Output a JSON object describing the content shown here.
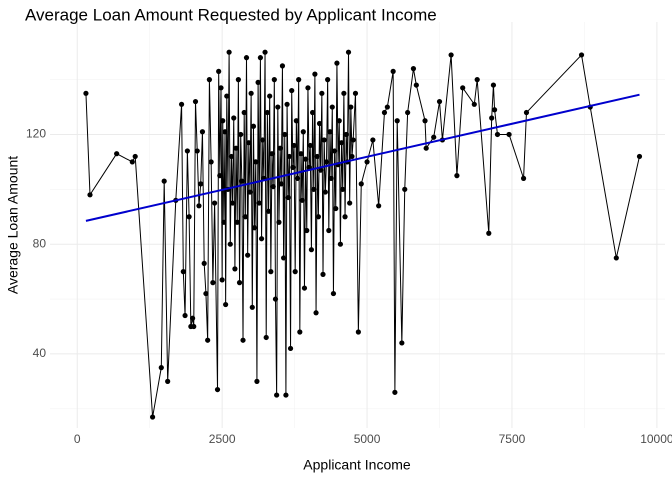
{
  "chart_data": {
    "type": "line",
    "title": "Average Loan Amount Requested by Applicant Income",
    "x_label": "Applicant Income",
    "y_label": "Average Loan Amount",
    "xlim": [
      -470,
      10140
    ],
    "ylim": [
      13,
      161
    ],
    "xticks": [
      0,
      2500,
      5000,
      7500,
      10000
    ],
    "yticks": [
      40,
      80,
      120
    ],
    "grid": true,
    "minor_grid": true,
    "color": "#000000",
    "x": [
      150,
      220,
      680,
      950,
      1000,
      1300,
      1450,
      1500,
      1560,
      1700,
      1800,
      1830,
      1860,
      1900,
      1930,
      1960,
      1990,
      2010,
      2040,
      2070,
      2100,
      2130,
      2160,
      2190,
      2220,
      2250,
      2280,
      2310,
      2340,
      2370,
      2420,
      2440,
      2460,
      2480,
      2500,
      2510,
      2530,
      2550,
      2560,
      2580,
      2600,
      2620,
      2640,
      2660,
      2680,
      2700,
      2720,
      2740,
      2760,
      2780,
      2800,
      2820,
      2840,
      2860,
      2880,
      2900,
      2920,
      2940,
      2960,
      2980,
      3000,
      3020,
      3040,
      3060,
      3080,
      3100,
      3120,
      3140,
      3160,
      3180,
      3200,
      3220,
      3240,
      3260,
      3280,
      3300,
      3320,
      3340,
      3360,
      3380,
      3400,
      3420,
      3440,
      3460,
      3480,
      3500,
      3520,
      3540,
      3560,
      3580,
      3600,
      3620,
      3640,
      3660,
      3680,
      3700,
      3720,
      3740,
      3760,
      3780,
      3800,
      3820,
      3840,
      3860,
      3880,
      3900,
      3920,
      3940,
      3960,
      3980,
      4000,
      4020,
      4040,
      4060,
      4080,
      4100,
      4120,
      4140,
      4160,
      4180,
      4200,
      4220,
      4240,
      4260,
      4280,
      4300,
      4320,
      4340,
      4360,
      4380,
      4400,
      4420,
      4440,
      4460,
      4480,
      4500,
      4520,
      4540,
      4560,
      4580,
      4600,
      4620,
      4640,
      4660,
      4680,
      4700,
      4720,
      4740,
      4760,
      4800,
      4850,
      4900,
      5000,
      5100,
      5200,
      5300,
      5350,
      5450,
      5480,
      5520,
      5600,
      5650,
      5700,
      5800,
      5850,
      6000,
      6020,
      6150,
      6250,
      6300,
      6450,
      6550,
      6650,
      6850,
      6900,
      7100,
      7150,
      7180,
      7200,
      7250,
      7450,
      7700,
      7750,
      8700,
      8850,
      9300,
      9700
    ],
    "values": [
      135,
      98,
      113,
      110,
      112,
      17,
      35,
      103,
      30,
      96,
      131,
      70,
      54,
      114,
      90,
      50,
      53,
      50,
      132,
      114,
      94,
      102,
      121,
      73,
      62,
      45,
      140,
      110,
      66,
      95,
      27,
      143,
      105,
      137,
      67,
      125,
      88,
      121,
      58,
      134,
      100,
      150,
      80,
      112,
      95,
      126,
      71,
      115,
      88,
      140,
      66,
      120,
      103,
      45,
      128,
      90,
      148,
      76,
      117,
      99,
      135,
      57,
      123,
      86,
      110,
      30,
      139,
      95,
      148,
      82,
      118,
      104,
      150,
      46,
      128,
      92,
      134,
      70,
      113,
      101,
      140,
      60,
      25,
      130,
      88,
      115,
      102,
      145,
      75,
      120,
      25,
      131,
      97,
      112,
      42,
      136,
      108,
      116,
      70,
      125,
      104,
      140,
      48,
      113,
      96,
      121,
      64,
      111,
      85,
      137,
      108,
      116,
      78,
      128,
      100,
      142,
      55,
      112,
      90,
      124,
      107,
      135,
      69,
      118,
      99,
      110,
      140,
      85,
      121,
      104,
      130,
      62,
      114,
      93,
      146,
      109,
      125,
      80,
      117,
      100,
      135,
      90,
      120,
      110,
      150,
      95,
      130,
      112,
      118,
      135,
      48,
      102,
      110,
      118,
      94,
      128,
      130,
      143,
      26,
      125,
      44,
      100,
      128,
      144,
      138,
      125,
      115,
      119,
      132,
      118,
      149,
      105,
      137,
      131,
      140,
      84,
      126,
      138,
      129,
      120,
      120,
      104,
      128,
      149,
      130,
      75,
      112
    ],
    "trend": {
      "x": [
        150,
        9700
      ],
      "values": [
        88.5,
        134.5
      ],
      "color": "#0000cd"
    }
  }
}
